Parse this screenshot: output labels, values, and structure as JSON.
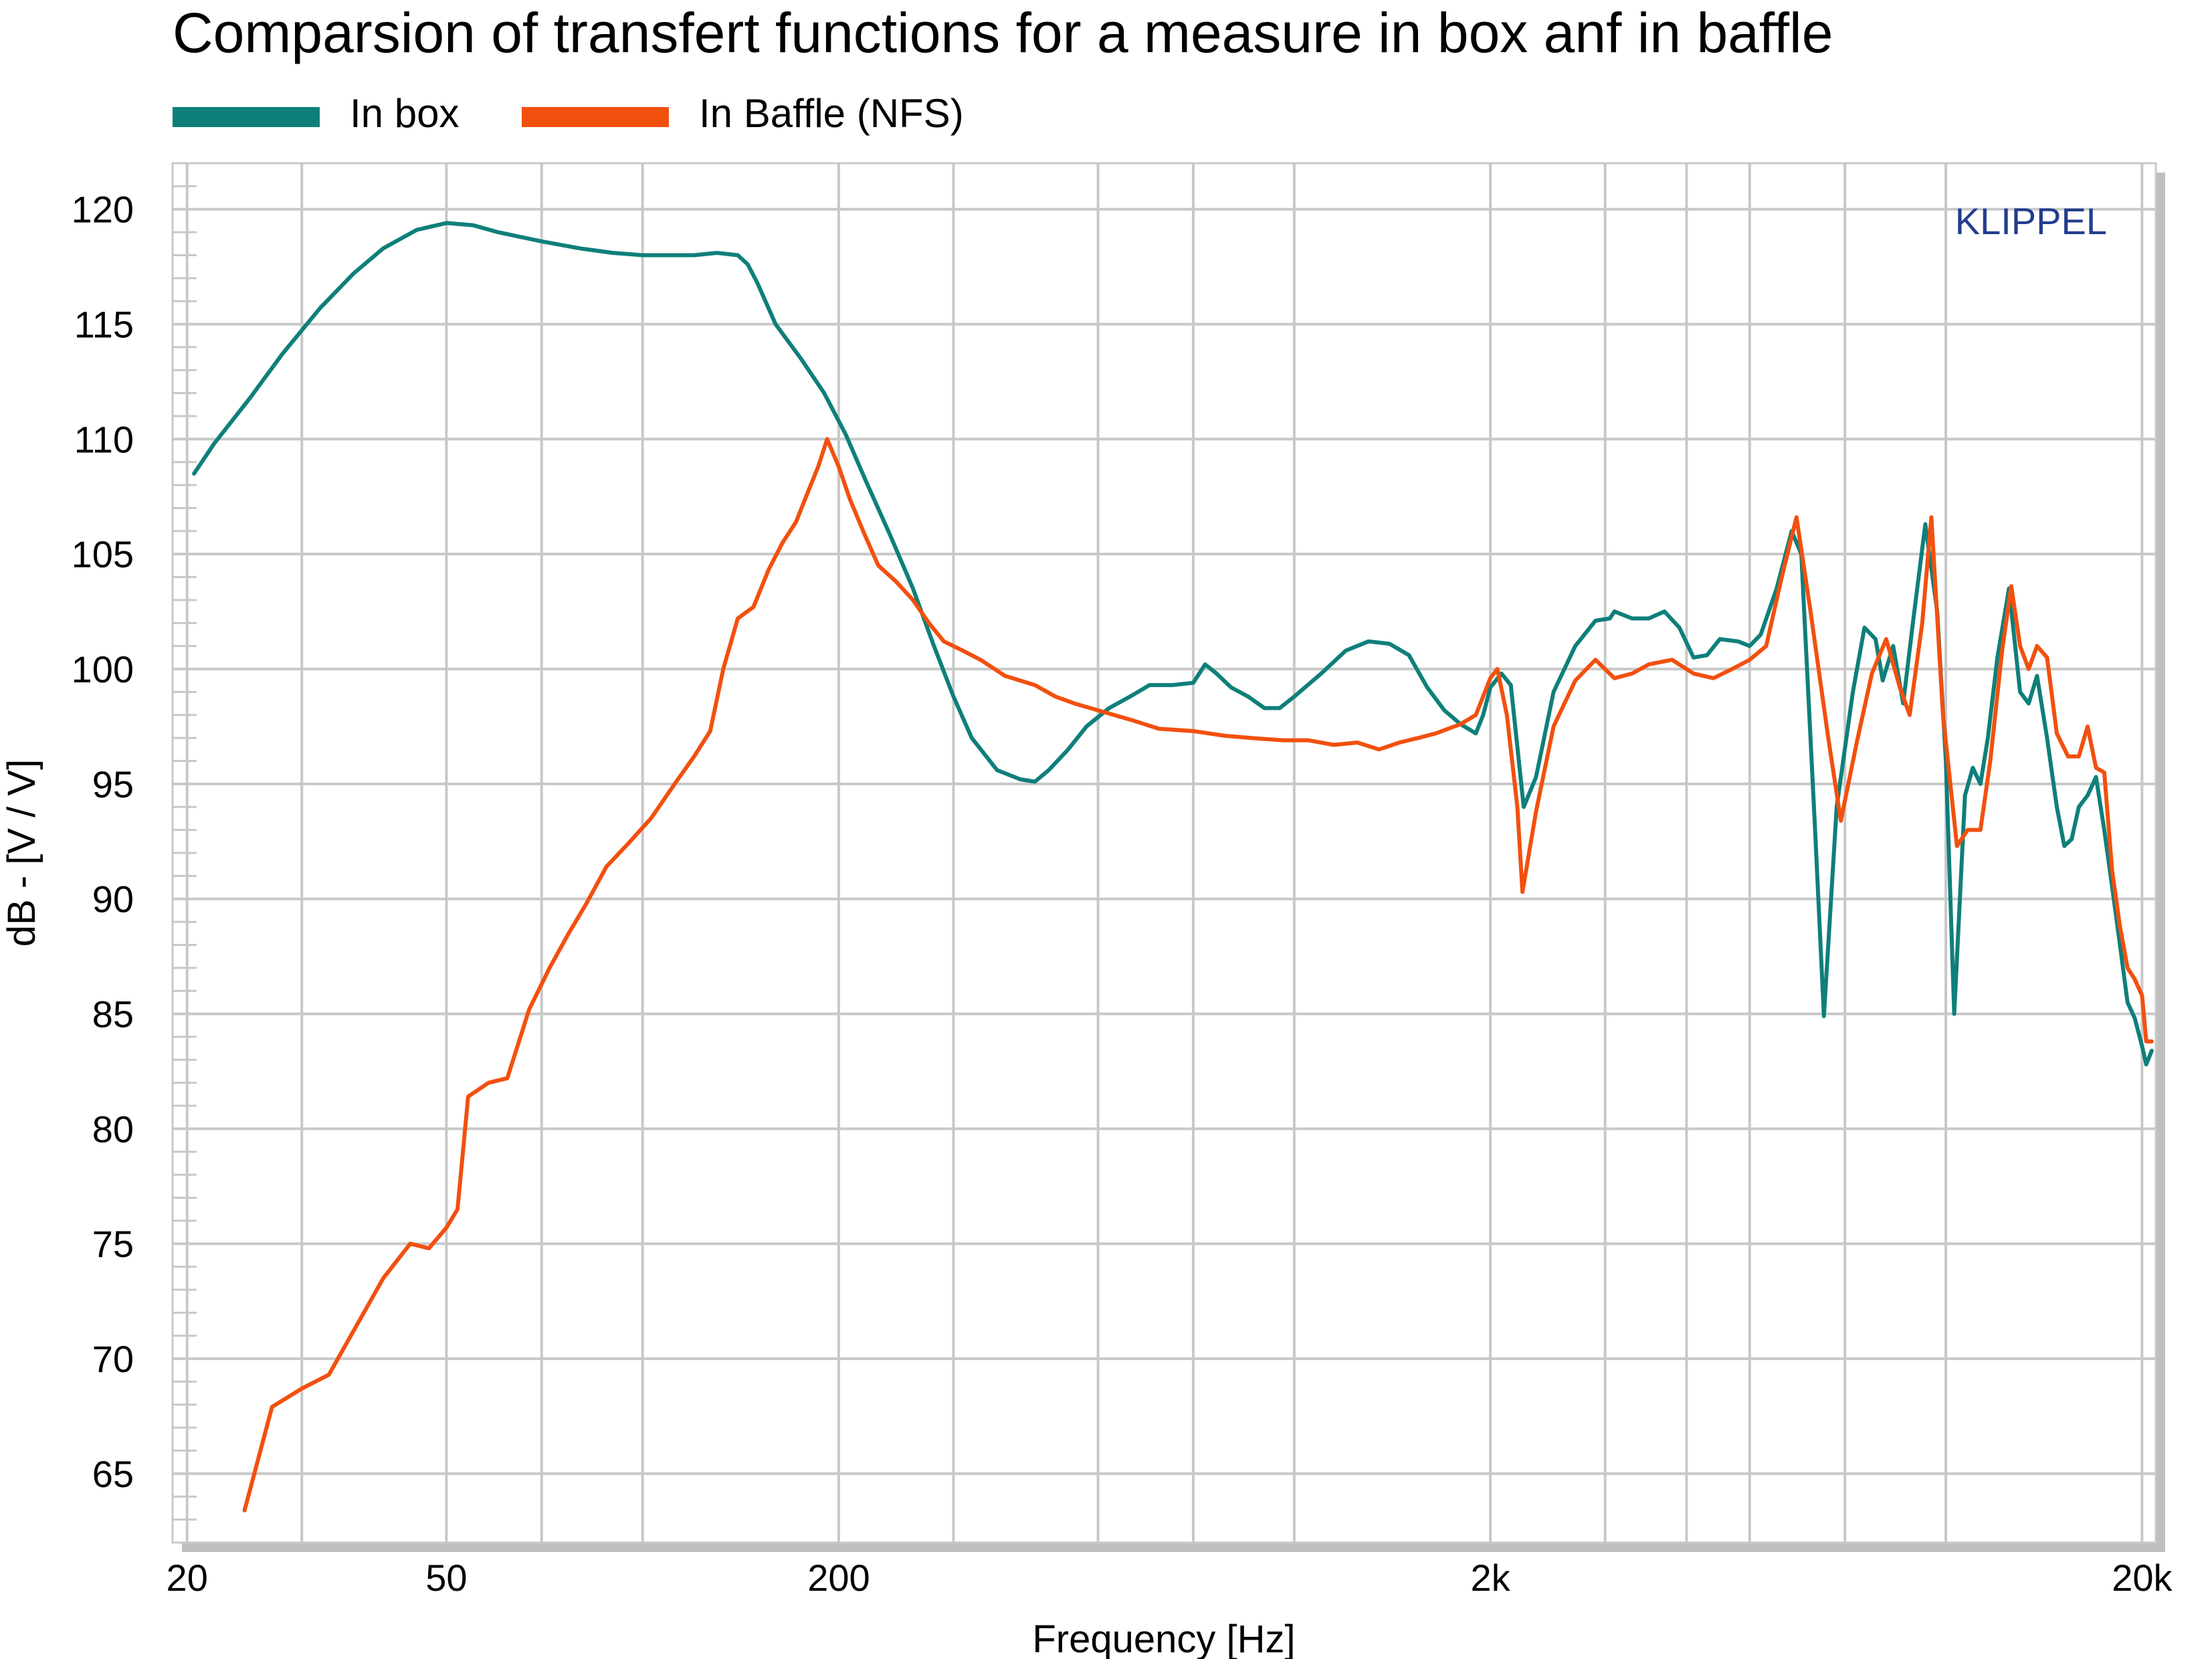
{
  "chart_data": {
    "type": "line",
    "title": "Comparsion of transfert functions for a measure in box anf in baffle",
    "xlabel": "Frequency [Hz]",
    "ylabel": "dB - [V / V]",
    "x_scale": "log",
    "xlim": [
      19,
      21000
    ],
    "ylim": [
      62,
      122
    ],
    "x_ticks": [
      {
        "value": 20,
        "label": "20"
      },
      {
        "value": 50,
        "label": "50"
      },
      {
        "value": 200,
        "label": "200"
      },
      {
        "value": 2000,
        "label": "2k"
      },
      {
        "value": 20000,
        "label": "20k"
      }
    ],
    "x_grid": [
      20,
      30,
      50,
      70,
      100,
      200,
      300,
      500,
      700,
      1000,
      2000,
      3000,
      4000,
      5000,
      7000,
      10000,
      20000
    ],
    "y_ticks": [
      65,
      70,
      75,
      80,
      85,
      90,
      95,
      100,
      105,
      110,
      115,
      120
    ],
    "grid": true,
    "legend_position": "top-left",
    "watermark": "KLIPPEL",
    "colors": {
      "in_box": "#0f7f7a",
      "in_baffle": "#f2500f",
      "grid": "#c8c8c8",
      "watermark": "#223d8f"
    },
    "series": [
      {
        "name": "In box",
        "points": [
          [
            20.5,
            108.5
          ],
          [
            22,
            109.8
          ],
          [
            25,
            111.8
          ],
          [
            28,
            113.7
          ],
          [
            32,
            115.7
          ],
          [
            36,
            117.2
          ],
          [
            40,
            118.3
          ],
          [
            45,
            119.1
          ],
          [
            50,
            119.4
          ],
          [
            55,
            119.3
          ],
          [
            60,
            119.0
          ],
          [
            70,
            118.6
          ],
          [
            80,
            118.3
          ],
          [
            90,
            118.1
          ],
          [
            100,
            118.0
          ],
          [
            110,
            118.0
          ],
          [
            120,
            118.0
          ],
          [
            130,
            118.1
          ],
          [
            140,
            118.0
          ],
          [
            145,
            117.6
          ],
          [
            150,
            116.8
          ],
          [
            160,
            115.0
          ],
          [
            175,
            113.5
          ],
          [
            190,
            112.0
          ],
          [
            205,
            110.2
          ],
          [
            220,
            108.2
          ],
          [
            240,
            105.8
          ],
          [
            260,
            103.5
          ],
          [
            280,
            101.0
          ],
          [
            300,
            98.8
          ],
          [
            320,
            97.0
          ],
          [
            350,
            95.6
          ],
          [
            380,
            95.2
          ],
          [
            400,
            95.1
          ],
          [
            420,
            95.6
          ],
          [
            450,
            96.5
          ],
          [
            480,
            97.5
          ],
          [
            520,
            98.3
          ],
          [
            560,
            98.8
          ],
          [
            600,
            99.3
          ],
          [
            650,
            99.3
          ],
          [
            700,
            99.4
          ],
          [
            730,
            100.2
          ],
          [
            760,
            99.8
          ],
          [
            800,
            99.2
          ],
          [
            850,
            98.8
          ],
          [
            900,
            98.3
          ],
          [
            950,
            98.3
          ],
          [
            1000,
            98.8
          ],
          [
            1100,
            99.8
          ],
          [
            1200,
            100.8
          ],
          [
            1300,
            101.2
          ],
          [
            1400,
            101.1
          ],
          [
            1500,
            100.6
          ],
          [
            1600,
            99.2
          ],
          [
            1700,
            98.2
          ],
          [
            1800,
            97.6
          ],
          [
            1900,
            97.2
          ],
          [
            1950,
            98.0
          ],
          [
            2000,
            99.2
          ],
          [
            2080,
            99.8
          ],
          [
            2150,
            99.3
          ],
          [
            2250,
            94.0
          ],
          [
            2350,
            95.3
          ],
          [
            2500,
            99.0
          ],
          [
            2700,
            101.0
          ],
          [
            2900,
            102.1
          ],
          [
            3050,
            102.2
          ],
          [
            3100,
            102.5
          ],
          [
            3300,
            102.2
          ],
          [
            3500,
            102.2
          ],
          [
            3700,
            102.5
          ],
          [
            3900,
            101.8
          ],
          [
            4100,
            100.5
          ],
          [
            4300,
            100.6
          ],
          [
            4500,
            101.3
          ],
          [
            4800,
            101.2
          ],
          [
            5000,
            101.0
          ],
          [
            5200,
            101.5
          ],
          [
            5500,
            103.5
          ],
          [
            5800,
            106.0
          ],
          [
            6000,
            105.0
          ],
          [
            6300,
            93.0
          ],
          [
            6500,
            84.9
          ],
          [
            6800,
            94.0
          ],
          [
            7200,
            99.0
          ],
          [
            7500,
            101.8
          ],
          [
            7800,
            101.3
          ],
          [
            8000,
            99.5
          ],
          [
            8300,
            101.0
          ],
          [
            8600,
            98.5
          ],
          [
            8900,
            102.0
          ],
          [
            9300,
            106.3
          ],
          [
            9700,
            102.5
          ],
          [
            10000,
            96.0
          ],
          [
            10300,
            85.0
          ],
          [
            10700,
            94.5
          ],
          [
            11000,
            95.7
          ],
          [
            11300,
            95.0
          ],
          [
            11600,
            97.0
          ],
          [
            12000,
            100.5
          ],
          [
            12500,
            103.5
          ],
          [
            13000,
            99.0
          ],
          [
            13400,
            98.5
          ],
          [
            13800,
            99.7
          ],
          [
            14300,
            97.0
          ],
          [
            14800,
            94.0
          ],
          [
            15200,
            92.3
          ],
          [
            15600,
            92.6
          ],
          [
            16000,
            94.0
          ],
          [
            16500,
            94.5
          ],
          [
            17000,
            95.3
          ],
          [
            17500,
            93.0
          ],
          [
            18000,
            90.5
          ],
          [
            18500,
            88.0
          ],
          [
            19000,
            85.5
          ],
          [
            19500,
            84.8
          ],
          [
            20000,
            83.6
          ],
          [
            20300,
            82.8
          ],
          [
            20700,
            83.4
          ]
        ]
      },
      {
        "name": "In Baffle (NFS)",
        "points": [
          [
            24.5,
            63.4
          ],
          [
            27,
            67.9
          ],
          [
            30,
            68.7
          ],
          [
            33,
            69.3
          ],
          [
            36,
            71.2
          ],
          [
            40,
            73.5
          ],
          [
            44,
            75.0
          ],
          [
            47,
            74.8
          ],
          [
            50,
            75.7
          ],
          [
            52,
            76.5
          ],
          [
            54,
            81.4
          ],
          [
            58,
            82.0
          ],
          [
            62,
            82.2
          ],
          [
            67,
            85.2
          ],
          [
            72,
            87.0
          ],
          [
            77,
            88.5
          ],
          [
            82,
            89.8
          ],
          [
            88,
            91.4
          ],
          [
            95,
            92.4
          ],
          [
            103,
            93.5
          ],
          [
            112,
            95.0
          ],
          [
            120,
            96.2
          ],
          [
            127,
            97.3
          ],
          [
            133,
            100.0
          ],
          [
            140,
            102.2
          ],
          [
            148,
            102.7
          ],
          [
            156,
            104.3
          ],
          [
            164,
            105.5
          ],
          [
            172,
            106.4
          ],
          [
            180,
            107.8
          ],
          [
            186,
            108.8
          ],
          [
            192,
            110.0
          ],
          [
            200,
            108.8
          ],
          [
            208,
            107.4
          ],
          [
            218,
            106.0
          ],
          [
            230,
            104.5
          ],
          [
            245,
            103.8
          ],
          [
            260,
            103.0
          ],
          [
            275,
            102.0
          ],
          [
            290,
            101.2
          ],
          [
            310,
            100.8
          ],
          [
            330,
            100.4
          ],
          [
            360,
            99.7
          ],
          [
            400,
            99.3
          ],
          [
            430,
            98.8
          ],
          [
            460,
            98.5
          ],
          [
            500,
            98.2
          ],
          [
            560,
            97.8
          ],
          [
            620,
            97.4
          ],
          [
            700,
            97.3
          ],
          [
            780,
            97.1
          ],
          [
            860,
            97.0
          ],
          [
            960,
            96.9
          ],
          [
            1050,
            96.9
          ],
          [
            1150,
            96.7
          ],
          [
            1250,
            96.8
          ],
          [
            1350,
            96.5
          ],
          [
            1450,
            96.8
          ],
          [
            1550,
            97.0
          ],
          [
            1650,
            97.2
          ],
          [
            1800,
            97.6
          ],
          [
            1900,
            98.0
          ],
          [
            2000,
            99.6
          ],
          [
            2050,
            100.0
          ],
          [
            2120,
            98.0
          ],
          [
            2200,
            94.0
          ],
          [
            2240,
            90.3
          ],
          [
            2350,
            93.8
          ],
          [
            2500,
            97.5
          ],
          [
            2700,
            99.5
          ],
          [
            2900,
            100.4
          ],
          [
            3100,
            99.6
          ],
          [
            3300,
            99.8
          ],
          [
            3500,
            100.2
          ],
          [
            3800,
            100.4
          ],
          [
            4100,
            99.8
          ],
          [
            4400,
            99.6
          ],
          [
            4700,
            100.0
          ],
          [
            5000,
            100.4
          ],
          [
            5300,
            101.0
          ],
          [
            5600,
            104.0
          ],
          [
            5900,
            106.6
          ],
          [
            6200,
            102.5
          ],
          [
            6600,
            97.0
          ],
          [
            6900,
            93.4
          ],
          [
            7300,
            96.8
          ],
          [
            7700,
            99.8
          ],
          [
            8100,
            101.3
          ],
          [
            8500,
            99.2
          ],
          [
            8800,
            98.0
          ],
          [
            9200,
            102.0
          ],
          [
            9500,
            106.6
          ],
          [
            9900,
            98.0
          ],
          [
            10400,
            92.3
          ],
          [
            10800,
            93.0
          ],
          [
            11300,
            93.0
          ],
          [
            11700,
            96.0
          ],
          [
            12200,
            100.8
          ],
          [
            12600,
            103.6
          ],
          [
            13000,
            101.0
          ],
          [
            13400,
            100.0
          ],
          [
            13800,
            101.0
          ],
          [
            14300,
            100.5
          ],
          [
            14800,
            97.2
          ],
          [
            15400,
            96.2
          ],
          [
            16000,
            96.2
          ],
          [
            16500,
            97.5
          ],
          [
            17000,
            95.7
          ],
          [
            17500,
            95.5
          ],
          [
            18000,
            91.2
          ],
          [
            18500,
            88.8
          ],
          [
            19000,
            87.0
          ],
          [
            19500,
            86.5
          ],
          [
            20000,
            85.8
          ],
          [
            20300,
            83.8
          ],
          [
            20700,
            83.8
          ]
        ]
      }
    ]
  }
}
